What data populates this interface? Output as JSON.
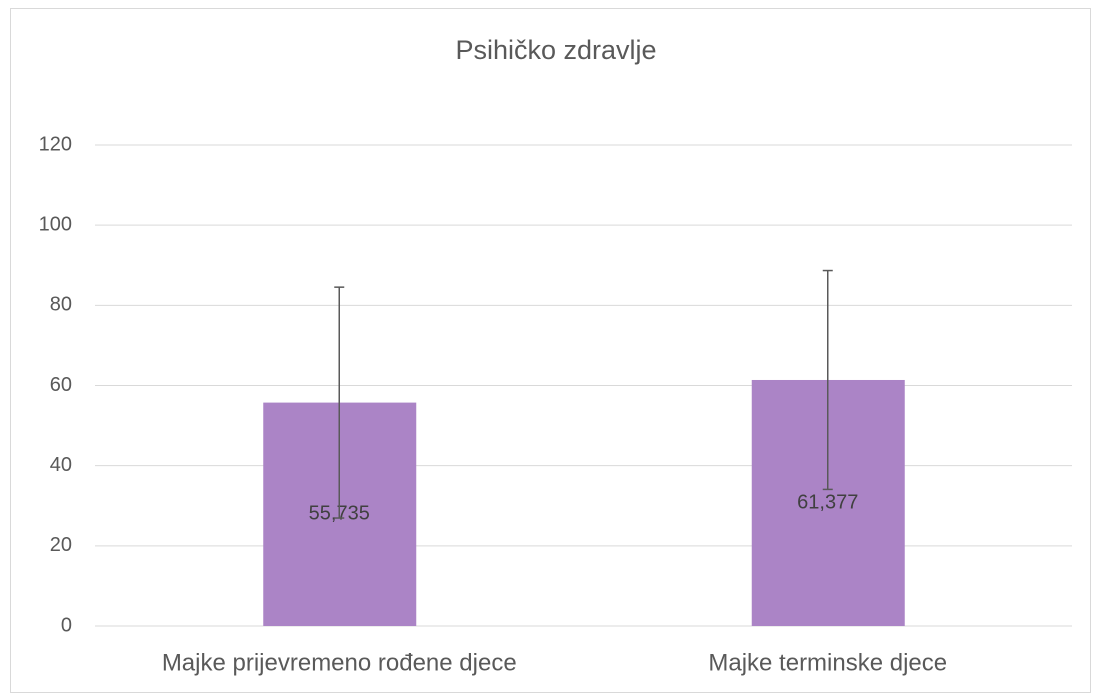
{
  "chart_data": {
    "type": "bar",
    "title": "Psihičko zdravlje",
    "categories": [
      "Majke prijevremeno rođene djece",
      "Majke terminske djece"
    ],
    "values": [
      55.735,
      61.377
    ],
    "value_labels": [
      "55,735",
      "61,377"
    ],
    "errors": [
      28.8,
      27.3
    ],
    "color": "#ab84c6",
    "ylim": [
      0,
      120
    ],
    "yticks": [
      0,
      20,
      40,
      60,
      80,
      100,
      120
    ],
    "grid": true
  }
}
